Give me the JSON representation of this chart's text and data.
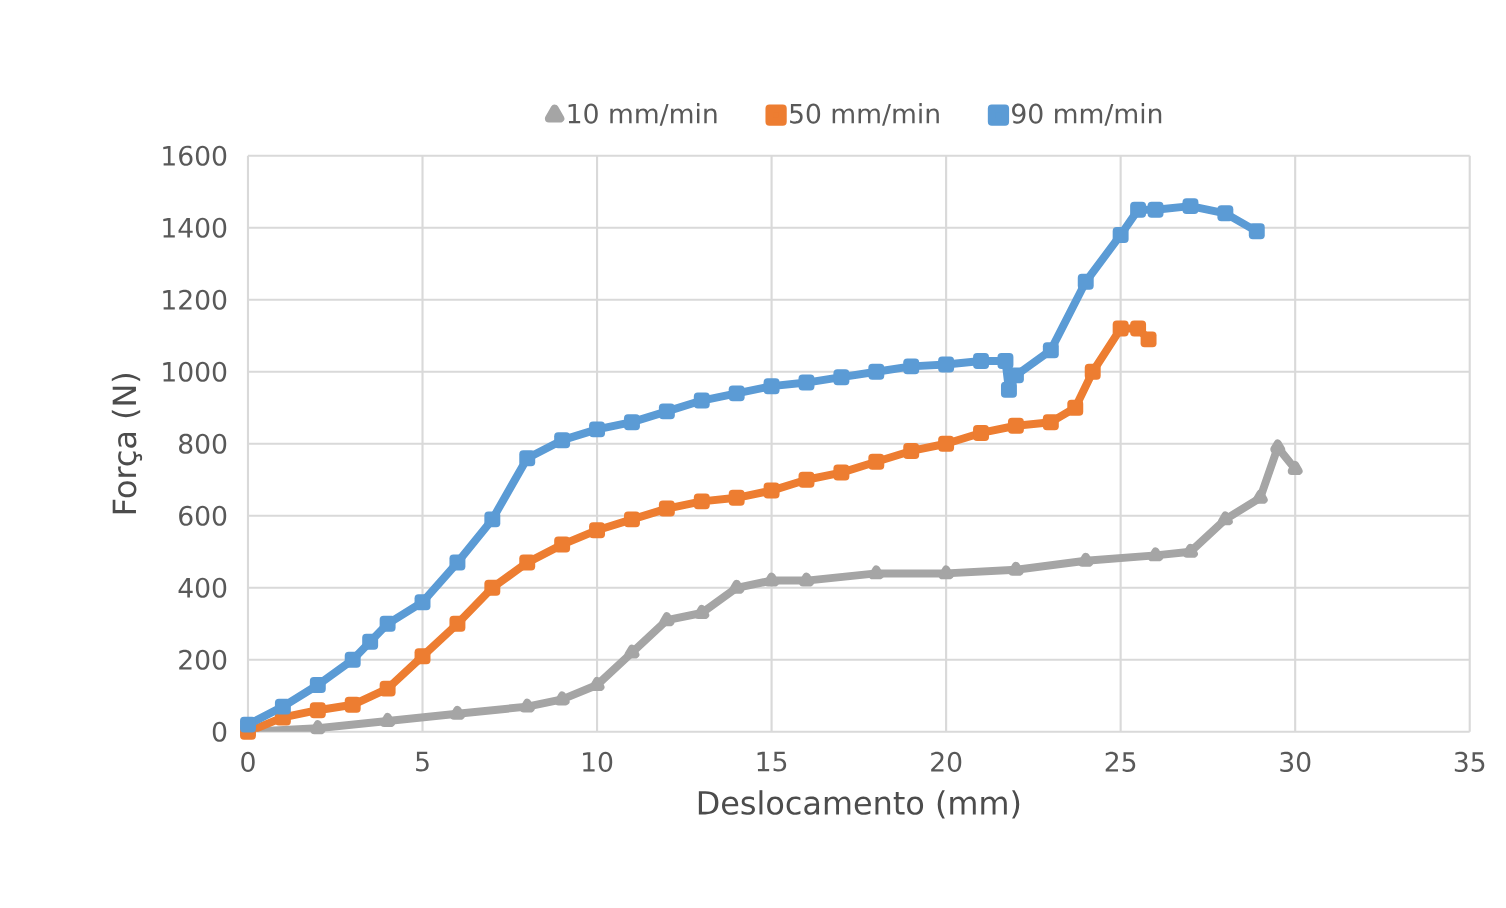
{
  "chart_data": {
    "type": "line",
    "xlabel": "Deslocamento (mm)",
    "ylabel": "Força (N)",
    "xlim": [
      0,
      35
    ],
    "ylim": [
      0,
      1600
    ],
    "xticks": [
      0,
      5,
      10,
      15,
      20,
      25,
      30,
      35
    ],
    "yticks": [
      0,
      200,
      400,
      600,
      800,
      1000,
      1200,
      1400,
      1600
    ],
    "grid": true,
    "legend": "top",
    "series": [
      {
        "name": "10 mm/min",
        "color": "#a5a5a5",
        "marker": "triangle",
        "x": [
          0,
          2,
          4,
          6,
          8,
          9,
          10,
          11,
          12,
          13,
          14,
          15,
          16,
          18,
          20,
          22,
          24,
          26,
          27,
          28,
          29,
          29.5,
          30
        ],
        "values": [
          0,
          10,
          30,
          50,
          70,
          90,
          130,
          220,
          310,
          330,
          400,
          420,
          420,
          440,
          440,
          450,
          475,
          490,
          500,
          590,
          650,
          790,
          730
        ]
      },
      {
        "name": "50 mm/min",
        "color": "#ed7d31",
        "marker": "square",
        "x": [
          0,
          1,
          2,
          3,
          4,
          5,
          6,
          7,
          8,
          9,
          10,
          11,
          12,
          13,
          14,
          15,
          16,
          17,
          18,
          19,
          20,
          21,
          22,
          23,
          23.7,
          24.2,
          25,
          25.5,
          25.8
        ],
        "values": [
          0,
          40,
          60,
          75,
          120,
          210,
          300,
          400,
          470,
          520,
          560,
          590,
          620,
          640,
          650,
          670,
          700,
          720,
          750,
          780,
          800,
          830,
          850,
          860,
          900,
          1000,
          1120,
          1120,
          1090
        ]
      },
      {
        "name": "90 mm/min",
        "color": "#5b9bd5",
        "marker": "square",
        "x": [
          0,
          1,
          2,
          3,
          3.5,
          4,
          5,
          6,
          7,
          8,
          9,
          10,
          11,
          12,
          13,
          14,
          15,
          16,
          17,
          18,
          19,
          20,
          21,
          21.7,
          21.8,
          22,
          23,
          24,
          25,
          25.5,
          26,
          27,
          28,
          28.9
        ],
        "values": [
          20,
          70,
          130,
          200,
          250,
          300,
          360,
          470,
          590,
          760,
          810,
          840,
          860,
          890,
          920,
          940,
          960,
          970,
          985,
          1000,
          1015,
          1020,
          1030,
          1030,
          950,
          990,
          1060,
          1250,
          1380,
          1450,
          1450,
          1460,
          1440,
          1390
        ]
      }
    ]
  }
}
